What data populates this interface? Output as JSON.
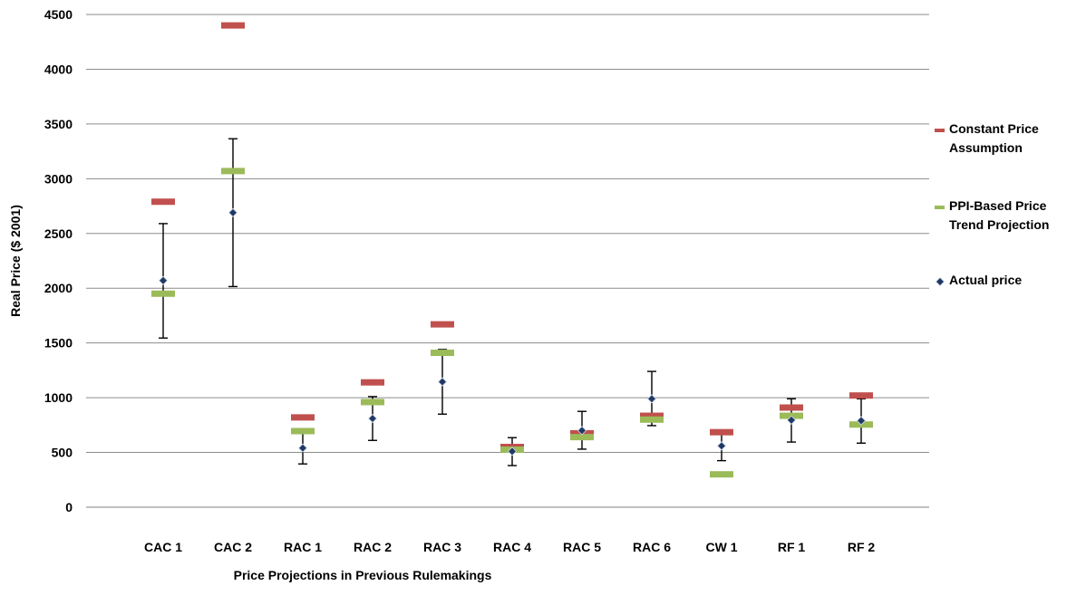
{
  "chart_data": {
    "type": "scatter",
    "title": "",
    "xlabel": "Price Projections  in Previous Rulemakings",
    "ylabel": "Real Price ($ 2001)",
    "ylim": [
      0,
      4500
    ],
    "yticks": [
      0,
      500,
      1000,
      1500,
      2000,
      2500,
      3000,
      3500,
      4000,
      4500
    ],
    "grid": true,
    "legend_position": "right",
    "categories": [
      "CAC 1",
      "CAC 2",
      "RAC 1",
      "RAC 2",
      "RAC 3",
      "RAC 4",
      "RAC 5",
      "RAC 6",
      "CW 1",
      "RF 1",
      "RF 2"
    ],
    "series": [
      {
        "name": "Constant Price Assumption",
        "legend_lines": [
          "Constant Price",
          "Assumption"
        ],
        "marker": "dash",
        "color": "#C0504D",
        "values": [
          2790,
          4400,
          820,
          1140,
          1670,
          550,
          675,
          835,
          685,
          910,
          1020
        ]
      },
      {
        "name": "PPI-Based Price Trend Projection",
        "legend_lines": [
          "PPI-Based Price",
          "Trend Projection"
        ],
        "marker": "dash",
        "color": "#9BBB59",
        "values": [
          1950,
          3070,
          695,
          960,
          1410,
          525,
          640,
          800,
          300,
          835,
          755
        ]
      },
      {
        "name": "Actual price",
        "legend_lines": [
          "Actual price"
        ],
        "marker": "diamond",
        "color": "#1F3864",
        "values": [
          2070,
          2690,
          540,
          810,
          1145,
          510,
          700,
          990,
          560,
          795,
          790
        ],
        "error_low": [
          1545,
          2015,
          395,
          610,
          850,
          380,
          530,
          745,
          425,
          595,
          585
        ],
        "error_high": [
          2590,
          3365,
          680,
          1010,
          1440,
          635,
          875,
          1240,
          700,
          990,
          990
        ]
      }
    ]
  }
}
